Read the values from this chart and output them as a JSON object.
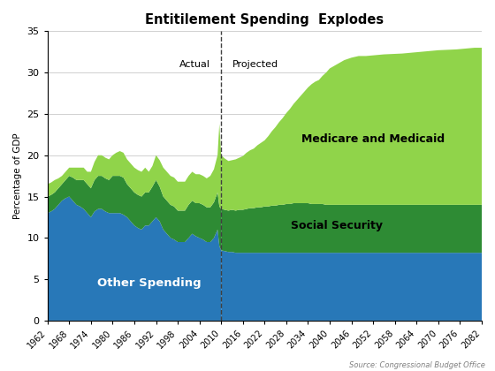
{
  "title": "Entitilement Spending  Explodes",
  "ylabel": "Percentage of GDP",
  "source": "Source: Congressional Budget Office",
  "divider_year": 2010,
  "actual_label": "Actual",
  "projected_label": "Projected",
  "colors": {
    "other": "#2878b8",
    "social_security": "#2e8b34",
    "medicare": "#90d44a"
  },
  "years_actual": [
    1962,
    1963,
    1964,
    1965,
    1966,
    1967,
    1968,
    1969,
    1970,
    1971,
    1972,
    1973,
    1974,
    1975,
    1976,
    1977,
    1978,
    1979,
    1980,
    1981,
    1982,
    1983,
    1984,
    1985,
    1986,
    1987,
    1988,
    1989,
    1990,
    1991,
    1992,
    1993,
    1994,
    1995,
    1996,
    1997,
    1998,
    1999,
    2000,
    2001,
    2002,
    2003,
    2004,
    2005,
    2006,
    2007,
    2008,
    2009,
    2009.5,
    2010
  ],
  "other_actual": [
    13.0,
    13.2,
    13.5,
    14.0,
    14.5,
    14.8,
    15.0,
    14.5,
    14.0,
    13.8,
    13.5,
    13.0,
    12.5,
    13.2,
    13.5,
    13.5,
    13.2,
    13.0,
    13.0,
    13.0,
    13.0,
    12.8,
    12.5,
    12.0,
    11.5,
    11.2,
    11.0,
    11.5,
    11.5,
    12.0,
    12.5,
    12.0,
    11.0,
    10.5,
    10.0,
    9.8,
    9.5,
    9.5,
    9.5,
    10.0,
    10.5,
    10.2,
    10.0,
    9.8,
    9.5,
    9.5,
    10.0,
    11.0,
    9.0,
    8.5
  ],
  "social_security_actual": [
    2.0,
    2.0,
    2.0,
    2.0,
    2.0,
    2.2,
    2.5,
    2.8,
    3.0,
    3.2,
    3.5,
    3.5,
    3.5,
    3.8,
    4.0,
    4.0,
    4.0,
    4.0,
    4.5,
    4.5,
    4.5,
    4.5,
    4.0,
    4.0,
    4.0,
    4.0,
    4.0,
    4.0,
    4.0,
    4.2,
    4.5,
    4.2,
    4.0,
    4.0,
    4.0,
    4.0,
    3.8,
    3.8,
    3.8,
    4.0,
    4.0,
    4.0,
    4.2,
    4.2,
    4.2,
    4.2,
    4.3,
    4.5,
    4.8,
    5.0
  ],
  "medicare_actual": [
    1.5,
    1.5,
    1.5,
    1.2,
    1.0,
    1.0,
    1.0,
    1.2,
    1.5,
    1.5,
    1.5,
    1.5,
    2.0,
    2.2,
    2.5,
    2.5,
    2.5,
    2.5,
    2.5,
    2.8,
    3.0,
    3.0,
    3.0,
    3.0,
    3.0,
    3.0,
    3.0,
    3.0,
    2.5,
    2.5,
    3.0,
    3.2,
    3.5,
    3.5,
    3.5,
    3.5,
    3.5,
    3.5,
    3.5,
    3.5,
    3.5,
    3.5,
    3.5,
    3.5,
    3.5,
    3.8,
    4.0,
    4.5,
    10.0,
    6.5
  ],
  "years_projected": [
    2010,
    2011,
    2012,
    2013,
    2014,
    2015,
    2016,
    2017,
    2018,
    2019,
    2020,
    2021,
    2022,
    2023,
    2024,
    2025,
    2026,
    2027,
    2028,
    2029,
    2030,
    2031,
    2032,
    2033,
    2034,
    2035,
    2036,
    2037,
    2038,
    2039,
    2040,
    2042,
    2044,
    2046,
    2048,
    2050,
    2055,
    2060,
    2065,
    2070,
    2075,
    2080,
    2082
  ],
  "other_projected": [
    8.5,
    8.4,
    8.3,
    8.3,
    8.2,
    8.2,
    8.2,
    8.2,
    8.2,
    8.2,
    8.2,
    8.2,
    8.2,
    8.2,
    8.2,
    8.2,
    8.2,
    8.2,
    8.2,
    8.2,
    8.2,
    8.2,
    8.2,
    8.2,
    8.2,
    8.2,
    8.2,
    8.2,
    8.2,
    8.2,
    8.2,
    8.2,
    8.2,
    8.2,
    8.2,
    8.2,
    8.2,
    8.2,
    8.2,
    8.2,
    8.2,
    8.2,
    8.2
  ],
  "social_security_projected": [
    5.0,
    5.0,
    5.0,
    5.1,
    5.1,
    5.2,
    5.2,
    5.3,
    5.4,
    5.4,
    5.5,
    5.5,
    5.6,
    5.6,
    5.7,
    5.7,
    5.8,
    5.8,
    5.9,
    5.9,
    6.0,
    6.0,
    6.0,
    6.0,
    6.0,
    5.9,
    5.9,
    5.9,
    5.9,
    5.8,
    5.8,
    5.8,
    5.8,
    5.8,
    5.8,
    5.8,
    5.8,
    5.8,
    5.8,
    5.8,
    5.8,
    5.8,
    5.8
  ],
  "medicare_projected": [
    6.5,
    6.2,
    6.0,
    6.0,
    6.2,
    6.3,
    6.5,
    6.8,
    7.0,
    7.2,
    7.5,
    7.8,
    8.0,
    8.5,
    9.0,
    9.5,
    10.0,
    10.5,
    11.0,
    11.5,
    12.0,
    12.5,
    13.0,
    13.5,
    14.0,
    14.5,
    14.8,
    15.0,
    15.5,
    16.0,
    16.5,
    17.0,
    17.5,
    17.8,
    18.0,
    18.0,
    18.2,
    18.3,
    18.5,
    18.7,
    18.8,
    19.0,
    19.0
  ],
  "ylim": [
    0,
    35
  ],
  "yticks": [
    0,
    5,
    10,
    15,
    20,
    25,
    30,
    35
  ],
  "bg_color": "#ffffff",
  "grid_color": "#d0d0d0"
}
